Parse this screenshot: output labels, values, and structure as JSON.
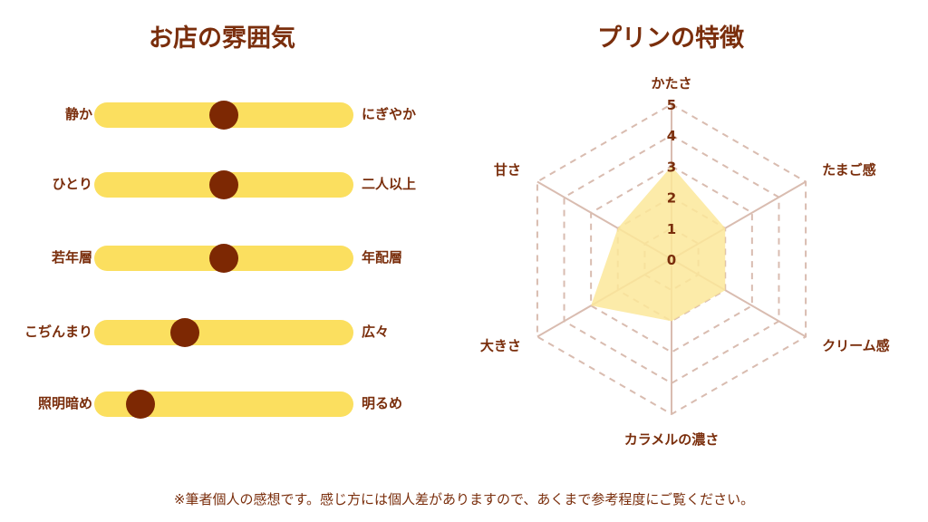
{
  "left_title": "お店の雰囲気",
  "right_title": "プリンの特徴",
  "sliders": [
    {
      "left": "静か",
      "right": "にぎやか",
      "value": 0.5
    },
    {
      "left": "ひとり",
      "right": "二人以上",
      "value": 0.5
    },
    {
      "left": "若年層",
      "right": "年配層",
      "value": 0.5
    },
    {
      "left": "こぢんまり",
      "right": "広々",
      "value": 0.35
    },
    {
      "left": "照明暗め",
      "right": "明るめ",
      "value": 0.18
    }
  ],
  "chart_data": {
    "type": "radar",
    "axes": [
      "かたさ",
      "たまご感",
      "クリーム感",
      "カラメルの濃さ",
      "大きさ",
      "甘さ"
    ],
    "values": [
      3,
      2,
      2,
      2,
      3,
      2
    ],
    "ticks": [
      "0",
      "1",
      "2",
      "3",
      "4",
      "5"
    ],
    "range": [
      0,
      5
    ],
    "fill_color": "#fbe89a",
    "grid": "dashed"
  },
  "footnote": "※筆者個人の感想です。感じ方には個人差がありますので、あくまで参考程度にご覧ください。",
  "colors": {
    "text": "#7a2e0c",
    "track": "#fbdf5f",
    "knob": "#7d2803",
    "grid": "#d9bcb0"
  }
}
